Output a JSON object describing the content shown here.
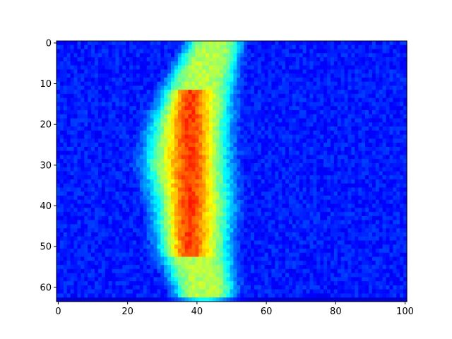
{
  "chart_data": {
    "type": "heatmap",
    "title": "",
    "xlabel": "",
    "ylabel": "",
    "columns": 101,
    "rows": 64,
    "xlim": [
      -0.5,
      100.5
    ],
    "ylim": [
      63.5,
      -0.5
    ],
    "y_inverted": true,
    "grid": false,
    "legend": "none",
    "colorbar": false,
    "colormap": "jet",
    "x_ticks": [
      {
        "value": 0,
        "label": "0"
      },
      {
        "value": 20,
        "label": "20"
      },
      {
        "value": 40,
        "label": "40"
      },
      {
        "value": 60,
        "label": "60"
      },
      {
        "value": 80,
        "label": "80"
      },
      {
        "value": 100,
        "label": "100"
      }
    ],
    "y_ticks": [
      {
        "value": 0,
        "label": "0"
      },
      {
        "value": 10,
        "label": "10"
      },
      {
        "value": 20,
        "label": "20"
      },
      {
        "value": 30,
        "label": "30"
      },
      {
        "value": 40,
        "label": "40"
      },
      {
        "value": 50,
        "label": "50"
      },
      {
        "value": 60,
        "label": "60"
      }
    ],
    "description_of_field": {
      "band_center_by_row": [
        [
          0,
          45
        ],
        [
          10,
          41
        ],
        [
          20,
          38
        ],
        [
          30,
          37
        ],
        [
          40,
          39
        ],
        [
          50,
          39
        ],
        [
          60,
          42
        ],
        [
          63,
          42
        ]
      ],
      "band_halfwidth_by_row": [
        [
          0,
          8
        ],
        [
          10,
          10
        ],
        [
          20,
          12
        ],
        [
          30,
          13
        ],
        [
          40,
          12
        ],
        [
          50,
          11
        ],
        [
          60,
          9
        ],
        [
          63,
          8
        ]
      ],
      "hotspot_rows": [
        12,
        52
      ],
      "hotspot_peak_column": 38,
      "background_level": 0.15,
      "band_level": 0.55,
      "hotspot_level": 0.85
    }
  }
}
